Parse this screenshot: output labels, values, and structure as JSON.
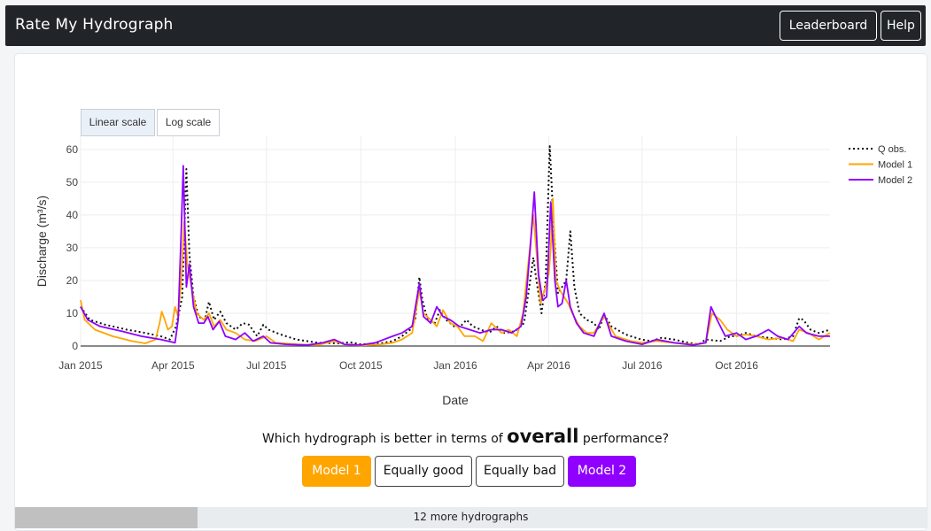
{
  "header": {
    "title": "Rate My Hydrograph",
    "leaderboard_label": "Leaderboard",
    "help_label": "Help"
  },
  "scale_buttons": {
    "linear": "Linear scale",
    "log": "Log scale",
    "active": "linear"
  },
  "question": {
    "prefix": "Which hydrograph is better in terms of",
    "highlight": "overall",
    "suffix": "performance?"
  },
  "vote_buttons": {
    "model1": "Model 1",
    "equal_good": "Equally good",
    "equal_bad": "Equally bad",
    "model2": "Model 2"
  },
  "progress": {
    "label": "12 more hydrographs",
    "fraction": 0.2
  },
  "colors": {
    "observed": "#111111",
    "model1": "#ffa500",
    "model2": "#8f00ff"
  },
  "chart_data": {
    "type": "line",
    "xlabel": "Date",
    "ylabel": "Discharge (m³/s)",
    "xlim": [
      "2015-01-01",
      "2016-12-31"
    ],
    "ylim": [
      0,
      64
    ],
    "yticks": [
      0,
      10,
      20,
      30,
      40,
      50,
      60
    ],
    "xticks": [
      {
        "date": "2015-01-01",
        "label": "Jan 2015"
      },
      {
        "date": "2015-04-01",
        "label": "Apr 2015"
      },
      {
        "date": "2015-07-01",
        "label": "Jul 2015"
      },
      {
        "date": "2015-10-01",
        "label": "Oct 2015"
      },
      {
        "date": "2016-01-01",
        "label": "Jan 2016"
      },
      {
        "date": "2016-04-01",
        "label": "Apr 2016"
      },
      {
        "date": "2016-07-01",
        "label": "Jul 2016"
      },
      {
        "date": "2016-10-01",
        "label": "Oct 2016"
      }
    ],
    "grid": true,
    "legend_position": "top-right",
    "series": [
      {
        "name": "Q obs.",
        "style": "dotted",
        "color": "#111111",
        "points": [
          [
            "2015-01-01",
            12
          ],
          [
            "2015-01-10",
            8
          ],
          [
            "2015-01-25",
            6.5
          ],
          [
            "2015-02-15",
            5
          ],
          [
            "2015-03-05",
            4
          ],
          [
            "2015-03-20",
            3
          ],
          [
            "2015-03-29",
            2
          ],
          [
            "2015-04-04",
            6
          ],
          [
            "2015-04-10",
            15
          ],
          [
            "2015-04-14",
            54
          ],
          [
            "2015-04-17",
            28
          ],
          [
            "2015-04-21",
            15
          ],
          [
            "2015-04-26",
            9
          ],
          [
            "2015-05-02",
            8
          ],
          [
            "2015-05-06",
            13.5
          ],
          [
            "2015-05-11",
            8
          ],
          [
            "2015-05-17",
            10.5
          ],
          [
            "2015-05-23",
            7
          ],
          [
            "2015-06-01",
            5
          ],
          [
            "2015-06-08",
            7
          ],
          [
            "2015-06-14",
            6.5
          ],
          [
            "2015-06-22",
            3
          ],
          [
            "2015-06-28",
            6.5
          ],
          [
            "2015-07-03",
            5
          ],
          [
            "2015-07-15",
            3.5
          ],
          [
            "2015-07-30",
            2
          ],
          [
            "2015-08-20",
            1
          ],
          [
            "2015-09-10",
            0.8
          ],
          [
            "2015-09-20",
            1.2
          ],
          [
            "2015-10-01",
            0.5
          ],
          [
            "2015-10-20",
            0.8
          ],
          [
            "2015-11-01",
            1.5
          ],
          [
            "2015-11-10",
            3
          ],
          [
            "2015-11-18",
            5
          ],
          [
            "2015-11-23",
            8
          ],
          [
            "2015-11-27",
            21
          ],
          [
            "2015-11-30",
            14
          ],
          [
            "2015-12-05",
            8
          ],
          [
            "2015-12-12",
            7
          ],
          [
            "2015-12-17",
            11
          ],
          [
            "2015-12-23",
            8
          ],
          [
            "2015-12-31",
            6
          ],
          [
            "2016-01-06",
            6
          ],
          [
            "2016-01-12",
            8
          ],
          [
            "2016-01-18",
            6
          ],
          [
            "2016-01-26",
            5
          ],
          [
            "2016-02-03",
            4
          ],
          [
            "2016-02-10",
            6
          ],
          [
            "2016-02-18",
            4
          ],
          [
            "2016-02-28",
            4.5
          ],
          [
            "2016-03-08",
            7
          ],
          [
            "2016-03-13",
            18
          ],
          [
            "2016-03-17",
            27
          ],
          [
            "2016-03-20",
            20
          ],
          [
            "2016-03-25",
            10
          ],
          [
            "2016-03-29",
            20
          ],
          [
            "2016-04-02",
            61
          ],
          [
            "2016-04-06",
            35
          ],
          [
            "2016-04-10",
            16
          ],
          [
            "2016-04-14",
            18
          ],
          [
            "2016-04-18",
            20
          ],
          [
            "2016-04-22",
            35
          ],
          [
            "2016-04-26",
            18
          ],
          [
            "2016-05-01",
            10
          ],
          [
            "2016-05-08",
            8
          ],
          [
            "2016-05-15",
            7
          ],
          [
            "2016-05-20",
            5
          ],
          [
            "2016-05-25",
            9.5
          ],
          [
            "2016-06-01",
            6
          ],
          [
            "2016-06-15",
            3.5
          ],
          [
            "2016-06-30",
            2
          ],
          [
            "2016-07-10",
            1.5
          ],
          [
            "2016-07-20",
            2.5
          ],
          [
            "2016-08-01",
            2
          ],
          [
            "2016-08-15",
            1
          ],
          [
            "2016-08-25",
            0.5
          ],
          [
            "2016-09-01",
            2
          ],
          [
            "2016-09-15",
            1.5
          ],
          [
            "2016-09-25",
            3
          ],
          [
            "2016-10-01",
            3
          ],
          [
            "2016-10-10",
            4
          ],
          [
            "2016-10-20",
            3
          ],
          [
            "2016-11-01",
            2.5
          ],
          [
            "2016-11-15",
            2
          ],
          [
            "2016-11-25",
            3
          ],
          [
            "2016-12-01",
            8.5
          ],
          [
            "2016-12-05",
            8
          ],
          [
            "2016-12-12",
            5
          ],
          [
            "2016-12-20",
            4
          ],
          [
            "2016-12-31",
            5
          ]
        ]
      },
      {
        "name": "Model 1",
        "style": "solid",
        "color": "#ffa500",
        "points": [
          [
            "2015-01-01",
            14
          ],
          [
            "2015-01-05",
            8
          ],
          [
            "2015-01-15",
            5
          ],
          [
            "2015-02-01",
            3
          ],
          [
            "2015-02-20",
            1.5
          ],
          [
            "2015-03-05",
            0.8
          ],
          [
            "2015-03-15",
            2
          ],
          [
            "2015-03-19",
            7
          ],
          [
            "2015-03-21",
            10.5
          ],
          [
            "2015-03-24",
            8
          ],
          [
            "2015-03-27",
            5
          ],
          [
            "2015-03-31",
            6
          ],
          [
            "2015-04-03",
            12
          ],
          [
            "2015-04-06",
            9
          ],
          [
            "2015-04-09",
            20
          ],
          [
            "2015-04-12",
            38
          ],
          [
            "2015-04-15",
            25
          ],
          [
            "2015-04-19",
            18
          ],
          [
            "2015-04-24",
            10
          ],
          [
            "2015-05-01",
            8
          ],
          [
            "2015-05-06",
            10
          ],
          [
            "2015-05-11",
            6
          ],
          [
            "2015-05-17",
            8
          ],
          [
            "2015-05-23",
            5
          ],
          [
            "2015-06-01",
            4
          ],
          [
            "2015-06-10",
            2
          ],
          [
            "2015-06-20",
            1.5
          ],
          [
            "2015-07-01",
            3
          ],
          [
            "2015-07-10",
            1
          ],
          [
            "2015-08-01",
            0.5
          ],
          [
            "2015-08-20",
            0.3
          ],
          [
            "2015-09-05",
            1.5
          ],
          [
            "2015-09-15",
            0.5
          ],
          [
            "2015-10-01",
            0.2
          ],
          [
            "2015-10-20",
            0.5
          ],
          [
            "2015-11-01",
            1
          ],
          [
            "2015-11-10",
            2
          ],
          [
            "2015-11-20",
            4
          ],
          [
            "2015-11-27",
            17
          ],
          [
            "2015-12-01",
            10
          ],
          [
            "2015-12-08",
            8
          ],
          [
            "2015-12-14",
            6
          ],
          [
            "2015-12-20",
            11
          ],
          [
            "2015-12-27",
            7
          ],
          [
            "2016-01-03",
            6
          ],
          [
            "2016-01-10",
            3
          ],
          [
            "2016-01-20",
            3
          ],
          [
            "2016-01-28",
            1.5
          ],
          [
            "2016-02-05",
            7
          ],
          [
            "2016-02-15",
            4
          ],
          [
            "2016-02-22",
            5
          ],
          [
            "2016-03-01",
            3
          ],
          [
            "2016-03-07",
            10
          ],
          [
            "2016-03-13",
            28
          ],
          [
            "2016-03-17",
            40
          ],
          [
            "2016-03-21",
            25
          ],
          [
            "2016-03-24",
            13
          ],
          [
            "2016-03-28",
            17
          ],
          [
            "2016-04-01",
            22
          ],
          [
            "2016-04-03",
            30
          ],
          [
            "2016-04-05",
            45
          ],
          [
            "2016-04-08",
            20
          ],
          [
            "2016-04-12",
            17
          ],
          [
            "2016-04-16",
            15
          ],
          [
            "2016-04-20",
            13
          ],
          [
            "2016-04-24",
            10
          ],
          [
            "2016-05-01",
            6
          ],
          [
            "2016-05-08",
            4
          ],
          [
            "2016-05-15",
            4
          ],
          [
            "2016-05-25",
            9
          ],
          [
            "2016-06-05",
            3
          ],
          [
            "2016-06-20",
            1.5
          ],
          [
            "2016-07-01",
            1
          ],
          [
            "2016-07-15",
            1.5
          ],
          [
            "2016-08-01",
            1
          ],
          [
            "2016-08-20",
            0.5
          ],
          [
            "2016-09-01",
            1
          ],
          [
            "2016-09-07",
            10
          ],
          [
            "2016-09-15",
            8
          ],
          [
            "2016-09-22",
            5
          ],
          [
            "2016-10-01",
            3
          ],
          [
            "2016-10-10",
            3.5
          ],
          [
            "2016-10-20",
            3
          ],
          [
            "2016-11-01",
            2
          ],
          [
            "2016-11-15",
            2.5
          ],
          [
            "2016-11-25",
            1.5
          ],
          [
            "2016-12-01",
            5
          ],
          [
            "2016-12-10",
            4
          ],
          [
            "2016-12-20",
            2
          ],
          [
            "2016-12-31",
            4
          ]
        ]
      },
      {
        "name": "Model 2",
        "style": "solid",
        "color": "#8f00ff",
        "points": [
          [
            "2015-01-01",
            12
          ],
          [
            "2015-01-08",
            8
          ],
          [
            "2015-01-20",
            6
          ],
          [
            "2015-02-10",
            4.5
          ],
          [
            "2015-03-01",
            3
          ],
          [
            "2015-03-20",
            2
          ],
          [
            "2015-04-03",
            1
          ],
          [
            "2015-04-06",
            8
          ],
          [
            "2015-04-09",
            35
          ],
          [
            "2015-04-11",
            55
          ],
          [
            "2015-04-14",
            18
          ],
          [
            "2015-04-17",
            25
          ],
          [
            "2015-04-21",
            12
          ],
          [
            "2015-04-26",
            7
          ],
          [
            "2015-05-01",
            7
          ],
          [
            "2015-05-05",
            9
          ],
          [
            "2015-05-10",
            5
          ],
          [
            "2015-05-16",
            7.5
          ],
          [
            "2015-05-22",
            3
          ],
          [
            "2015-06-01",
            2
          ],
          [
            "2015-06-10",
            4
          ],
          [
            "2015-06-18",
            1.5
          ],
          [
            "2015-06-28",
            3
          ],
          [
            "2015-07-05",
            1
          ],
          [
            "2015-07-20",
            0.5
          ],
          [
            "2015-08-10",
            0.3
          ],
          [
            "2015-08-25",
            1
          ],
          [
            "2015-09-05",
            2
          ],
          [
            "2015-09-15",
            0.5
          ],
          [
            "2015-10-01",
            0.3
          ],
          [
            "2015-10-15",
            1
          ],
          [
            "2015-11-01",
            3
          ],
          [
            "2015-11-10",
            4
          ],
          [
            "2015-11-20",
            6
          ],
          [
            "2015-11-27",
            19
          ],
          [
            "2015-12-01",
            9
          ],
          [
            "2015-12-08",
            7
          ],
          [
            "2015-12-14",
            12
          ],
          [
            "2015-12-20",
            9
          ],
          [
            "2015-12-27",
            8
          ],
          [
            "2016-01-05",
            6
          ],
          [
            "2016-01-15",
            5
          ],
          [
            "2016-01-25",
            4
          ],
          [
            "2016-02-05",
            5
          ],
          [
            "2016-02-15",
            5
          ],
          [
            "2016-02-25",
            4
          ],
          [
            "2016-03-05",
            6
          ],
          [
            "2016-03-10",
            15
          ],
          [
            "2016-03-14",
            30
          ],
          [
            "2016-03-18",
            47
          ],
          [
            "2016-03-22",
            22
          ],
          [
            "2016-03-26",
            14
          ],
          [
            "2016-03-30",
            15
          ],
          [
            "2016-04-03",
            44
          ],
          [
            "2016-04-07",
            20
          ],
          [
            "2016-04-10",
            12
          ],
          [
            "2016-04-14",
            13
          ],
          [
            "2016-04-18",
            20
          ],
          [
            "2016-04-22",
            12
          ],
          [
            "2016-04-28",
            7
          ],
          [
            "2016-05-05",
            4
          ],
          [
            "2016-05-15",
            3
          ],
          [
            "2016-05-25",
            10
          ],
          [
            "2016-06-01",
            3
          ],
          [
            "2016-06-15",
            1.5
          ],
          [
            "2016-07-01",
            0.5
          ],
          [
            "2016-07-15",
            2
          ],
          [
            "2016-08-01",
            1
          ],
          [
            "2016-08-20",
            0.3
          ],
          [
            "2016-09-01",
            1
          ],
          [
            "2016-09-06",
            12
          ],
          [
            "2016-09-12",
            8
          ],
          [
            "2016-09-20",
            3
          ],
          [
            "2016-10-01",
            4
          ],
          [
            "2016-10-10",
            2
          ],
          [
            "2016-10-20",
            3
          ],
          [
            "2016-11-01",
            5
          ],
          [
            "2016-11-10",
            3
          ],
          [
            "2016-11-20",
            2
          ],
          [
            "2016-12-01",
            6
          ],
          [
            "2016-12-08",
            4
          ],
          [
            "2016-12-20",
            3
          ],
          [
            "2016-12-31",
            3
          ]
        ]
      }
    ]
  }
}
